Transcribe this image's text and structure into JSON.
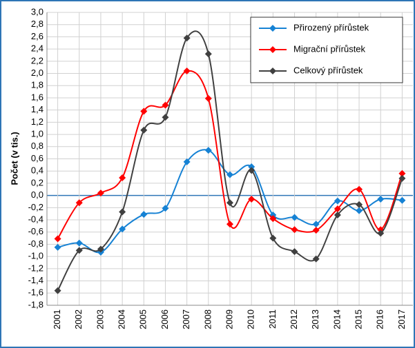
{
  "chart_data": {
    "type": "line",
    "y_label": "Počet (v tis.)",
    "categories": [
      "2001",
      "2002",
      "2003",
      "2004",
      "2005",
      "2006",
      "2007",
      "2008",
      "2009",
      "2010",
      "2011",
      "2012",
      "2013",
      "2014",
      "2015",
      "2016",
      "2017"
    ],
    "series": [
      {
        "name": "Přirozený přírůstek",
        "color": "#1682d4",
        "values": [
          -0.85,
          -0.78,
          -0.93,
          -0.55,
          -0.31,
          -0.21,
          0.55,
          0.74,
          0.34,
          0.47,
          -0.32,
          -0.36,
          -0.47,
          -0.09,
          -0.25,
          -0.06,
          -0.08
        ]
      },
      {
        "name": "Migrační přírůstek",
        "color": "#ff0000",
        "values": [
          -0.71,
          -0.12,
          0.04,
          0.29,
          1.38,
          1.48,
          2.04,
          1.59,
          -0.47,
          -0.06,
          -0.38,
          -0.56,
          -0.57,
          -0.22,
          0.1,
          -0.56,
          0.36
        ]
      },
      {
        "name": "Celkový přírůstek",
        "color": "#404040",
        "values": [
          -1.56,
          -0.9,
          -0.88,
          -0.27,
          1.07,
          1.28,
          2.58,
          2.32,
          -0.12,
          0.41,
          -0.7,
          -0.92,
          -1.04,
          -0.32,
          -0.15,
          -0.62,
          0.28
        ]
      }
    ],
    "ylim": [
      -1.8,
      3.0
    ],
    "yticks": [
      {
        "value": -1.8,
        "label": "-1,8"
      },
      {
        "value": -1.6,
        "label": "-1,6"
      },
      {
        "value": -1.4,
        "label": "-1,4"
      },
      {
        "value": -1.2,
        "label": "-1,2"
      },
      {
        "value": -1.0,
        "label": "-1,0"
      },
      {
        "value": -0.8,
        "label": "-0,8"
      },
      {
        "value": -0.6,
        "label": "-0,6"
      },
      {
        "value": -0.4,
        "label": "-0,4"
      },
      {
        "value": -0.2,
        "label": "-0,2"
      },
      {
        "value": 0,
        "label": "0,0"
      },
      {
        "value": 0.2,
        "label": "0,2"
      },
      {
        "value": 0.4,
        "label": "0,4"
      },
      {
        "value": 0.6,
        "label": "0,6"
      },
      {
        "value": 0.8,
        "label": "0,8"
      },
      {
        "value": 1.0,
        "label": "1,0"
      },
      {
        "value": 1.2,
        "label": "1,2"
      },
      {
        "value": 1.4,
        "label": "1,4"
      },
      {
        "value": 1.6,
        "label": "1,6"
      },
      {
        "value": 1.8,
        "label": "1,8"
      },
      {
        "value": 2.0,
        "label": "2,0"
      },
      {
        "value": 2.2,
        "label": "2,2"
      },
      {
        "value": 2.4,
        "label": "2,4"
      },
      {
        "value": 2.6,
        "label": "2,6"
      },
      {
        "value": 2.8,
        "label": "2,8"
      },
      {
        "value": 3.0,
        "label": "3,0"
      }
    ],
    "grid": true,
    "legend": "top-right",
    "smooth": true
  }
}
